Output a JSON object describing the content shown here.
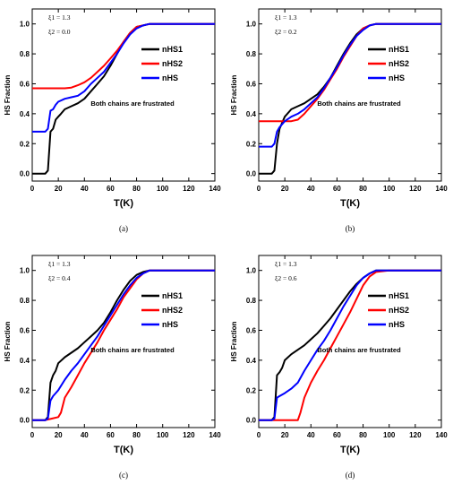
{
  "chart_data": [
    {
      "type": "line",
      "panel_label": "(a)",
      "xlabel": "T(K)",
      "ylabel": "HS Fraction",
      "xlim": [
        0,
        140
      ],
      "ylim": [
        -0.05,
        1.1
      ],
      "xticks": [
        "0",
        "20",
        "40",
        "60",
        "80",
        "100",
        "120",
        "140"
      ],
      "yticks": [
        "0.0",
        "0.2",
        "0.4",
        "0.6",
        "0.8",
        "1.0"
      ],
      "params": [
        "ξ1 = 1.3",
        "ξ2 = 0.0"
      ],
      "annotation": "Both chains are frustrated",
      "series": [
        {
          "name": "nHS1",
          "color": "#000000",
          "x": [
            0,
            5,
            10,
            12,
            14,
            16,
            18,
            20,
            22,
            25,
            30,
            35,
            40,
            45,
            50,
            55,
            60,
            65,
            70,
            75,
            80,
            85,
            90,
            100,
            120,
            140
          ],
          "y": [
            0,
            0,
            0,
            0.02,
            0.28,
            0.3,
            0.36,
            0.38,
            0.4,
            0.43,
            0.45,
            0.47,
            0.5,
            0.55,
            0.6,
            0.65,
            0.72,
            0.8,
            0.88,
            0.94,
            0.98,
            0.99,
            1.0,
            1.0,
            1.0,
            1.0
          ]
        },
        {
          "name": "nHS2",
          "color": "#ff0000",
          "x": [
            0,
            10,
            20,
            25,
            30,
            35,
            40,
            45,
            50,
            55,
            60,
            65,
            70,
            75,
            80,
            85,
            90,
            100,
            120,
            140
          ],
          "y": [
            0.57,
            0.57,
            0.57,
            0.57,
            0.575,
            0.59,
            0.61,
            0.64,
            0.68,
            0.72,
            0.77,
            0.82,
            0.88,
            0.94,
            0.98,
            0.99,
            1.0,
            1.0,
            1.0,
            1.0
          ]
        },
        {
          "name": "nHS",
          "color": "#0000ff",
          "x": [
            0,
            5,
            10,
            12,
            14,
            16,
            18,
            20,
            25,
            30,
            35,
            40,
            45,
            50,
            55,
            60,
            65,
            70,
            75,
            80,
            85,
            90,
            100,
            120,
            140
          ],
          "y": [
            0.28,
            0.28,
            0.28,
            0.3,
            0.42,
            0.43,
            0.46,
            0.48,
            0.5,
            0.51,
            0.52,
            0.55,
            0.6,
            0.64,
            0.68,
            0.74,
            0.8,
            0.87,
            0.93,
            0.97,
            0.99,
            1.0,
            1.0,
            1.0,
            1.0
          ]
        }
      ]
    },
    {
      "type": "line",
      "panel_label": "(b)",
      "xlabel": "T(K)",
      "ylabel": "HS Fraction",
      "xlim": [
        0,
        140
      ],
      "ylim": [
        -0.05,
        1.1
      ],
      "xticks": [
        "0",
        "20",
        "40",
        "60",
        "80",
        "100",
        "120",
        "140"
      ],
      "yticks": [
        "0.0",
        "0.2",
        "0.4",
        "0.6",
        "0.8",
        "1.0"
      ],
      "params": [
        "ξ1 = 1.3",
        "ξ2 = 0.2"
      ],
      "annotation": "Both chains are frustrated",
      "series": [
        {
          "name": "nHS1",
          "color": "#000000",
          "x": [
            0,
            5,
            10,
            12,
            14,
            16,
            18,
            20,
            25,
            30,
            35,
            40,
            45,
            50,
            55,
            60,
            65,
            70,
            75,
            80,
            85,
            90,
            100,
            120,
            140
          ],
          "y": [
            0,
            0,
            0,
            0.02,
            0.2,
            0.3,
            0.34,
            0.38,
            0.43,
            0.45,
            0.47,
            0.5,
            0.53,
            0.58,
            0.64,
            0.72,
            0.8,
            0.87,
            0.93,
            0.97,
            0.99,
            1.0,
            1.0,
            1.0,
            1.0
          ]
        },
        {
          "name": "nHS2",
          "color": "#ff0000",
          "x": [
            0,
            10,
            20,
            25,
            30,
            35,
            40,
            45,
            50,
            55,
            60,
            65,
            70,
            75,
            80,
            85,
            90,
            100,
            120,
            140
          ],
          "y": [
            0.35,
            0.35,
            0.35,
            0.35,
            0.36,
            0.4,
            0.45,
            0.5,
            0.56,
            0.63,
            0.7,
            0.78,
            0.85,
            0.92,
            0.97,
            0.99,
            1.0,
            1.0,
            1.0,
            1.0
          ]
        },
        {
          "name": "nHS",
          "color": "#0000ff",
          "x": [
            0,
            5,
            10,
            12,
            14,
            16,
            20,
            25,
            30,
            35,
            40,
            45,
            50,
            55,
            60,
            65,
            70,
            75,
            80,
            85,
            90,
            100,
            120,
            140
          ],
          "y": [
            0.18,
            0.18,
            0.18,
            0.2,
            0.28,
            0.31,
            0.35,
            0.38,
            0.4,
            0.43,
            0.47,
            0.51,
            0.57,
            0.64,
            0.71,
            0.79,
            0.86,
            0.92,
            0.96,
            0.99,
            1.0,
            1.0,
            1.0,
            1.0
          ]
        }
      ]
    },
    {
      "type": "line",
      "panel_label": "(c)",
      "xlabel": "T(K)",
      "ylabel": "HS Fraction",
      "xlim": [
        0,
        140
      ],
      "ylim": [
        -0.05,
        1.1
      ],
      "xticks": [
        "0",
        "20",
        "40",
        "60",
        "80",
        "100",
        "120",
        "140"
      ],
      "yticks": [
        "0.0",
        "0.2",
        "0.4",
        "0.6",
        "0.8",
        "1.0"
      ],
      "params": [
        "ξ1 = 1.3",
        "ξ2 = 0.4"
      ],
      "annotation": "Both chains are frustrated",
      "series": [
        {
          "name": "nHS1",
          "color": "#000000",
          "x": [
            0,
            5,
            10,
            12,
            14,
            16,
            18,
            20,
            25,
            30,
            35,
            40,
            45,
            50,
            55,
            60,
            65,
            70,
            75,
            80,
            85,
            90,
            100,
            120,
            140
          ],
          "y": [
            0,
            0,
            0,
            0.02,
            0.25,
            0.3,
            0.33,
            0.38,
            0.42,
            0.45,
            0.48,
            0.52,
            0.56,
            0.6,
            0.65,
            0.72,
            0.8,
            0.87,
            0.93,
            0.97,
            0.99,
            1.0,
            1.0,
            1.0,
            1.0
          ]
        },
        {
          "name": "nHS2",
          "color": "#ff0000",
          "x": [
            0,
            5,
            10,
            15,
            20,
            22,
            25,
            30,
            35,
            40,
            45,
            50,
            55,
            60,
            65,
            70,
            75,
            80,
            85,
            90,
            100,
            120,
            140
          ],
          "y": [
            0,
            0,
            0,
            0.01,
            0.02,
            0.05,
            0.15,
            0.22,
            0.3,
            0.38,
            0.45,
            0.52,
            0.6,
            0.67,
            0.74,
            0.82,
            0.88,
            0.94,
            0.98,
            1.0,
            1.0,
            1.0,
            1.0
          ]
        },
        {
          "name": "nHS",
          "color": "#0000ff",
          "x": [
            0,
            5,
            10,
            12,
            14,
            16,
            18,
            20,
            25,
            30,
            35,
            40,
            45,
            50,
            55,
            60,
            65,
            70,
            75,
            80,
            85,
            90,
            100,
            120,
            140
          ],
          "y": [
            0,
            0,
            0,
            0.01,
            0.13,
            0.16,
            0.18,
            0.2,
            0.27,
            0.33,
            0.38,
            0.44,
            0.5,
            0.56,
            0.63,
            0.7,
            0.77,
            0.84,
            0.9,
            0.95,
            0.98,
            1.0,
            1.0,
            1.0,
            1.0
          ]
        }
      ]
    },
    {
      "type": "line",
      "panel_label": "(d)",
      "xlabel": "T(K)",
      "ylabel": "HS Fraction",
      "xlim": [
        0,
        140
      ],
      "ylim": [
        -0.05,
        1.1
      ],
      "xticks": [
        "0",
        "20",
        "40",
        "60",
        "80",
        "100",
        "120",
        "140"
      ],
      "yticks": [
        "0.0",
        "0.2",
        "0.4",
        "0.6",
        "0.8",
        "1.0"
      ],
      "params": [
        "ξ1 = 1.3",
        "ξ2 = 0.6"
      ],
      "annotation": "Both chains are frustrated",
      "series": [
        {
          "name": "nHS1",
          "color": "#000000",
          "x": [
            0,
            5,
            10,
            12,
            14,
            16,
            18,
            20,
            25,
            30,
            35,
            40,
            45,
            50,
            55,
            60,
            65,
            70,
            75,
            80,
            85,
            90,
            100,
            120,
            140
          ],
          "y": [
            0,
            0,
            0,
            0.02,
            0.3,
            0.32,
            0.35,
            0.4,
            0.44,
            0.47,
            0.5,
            0.54,
            0.58,
            0.63,
            0.68,
            0.74,
            0.8,
            0.86,
            0.91,
            0.95,
            0.98,
            1.0,
            1.0,
            1.0,
            1.0
          ]
        },
        {
          "name": "nHS2",
          "color": "#ff0000",
          "x": [
            0,
            10,
            20,
            25,
            30,
            32,
            35,
            40,
            45,
            50,
            55,
            60,
            65,
            70,
            75,
            80,
            85,
            90,
            100,
            120,
            140
          ],
          "y": [
            0,
            0,
            0,
            0,
            0,
            0.05,
            0.15,
            0.25,
            0.33,
            0.4,
            0.48,
            0.56,
            0.64,
            0.72,
            0.81,
            0.9,
            0.96,
            0.99,
            1.0,
            1.0,
            1.0
          ]
        },
        {
          "name": "nHS",
          "color": "#0000ff",
          "x": [
            0,
            5,
            10,
            12,
            14,
            16,
            20,
            25,
            30,
            35,
            40,
            45,
            50,
            55,
            60,
            65,
            70,
            75,
            80,
            85,
            90,
            100,
            120,
            140
          ],
          "y": [
            0,
            0,
            0,
            0.01,
            0.15,
            0.16,
            0.18,
            0.21,
            0.25,
            0.33,
            0.4,
            0.47,
            0.53,
            0.6,
            0.68,
            0.76,
            0.83,
            0.9,
            0.95,
            0.98,
            1.0,
            1.0,
            1.0,
            1.0
          ]
        }
      ]
    }
  ]
}
